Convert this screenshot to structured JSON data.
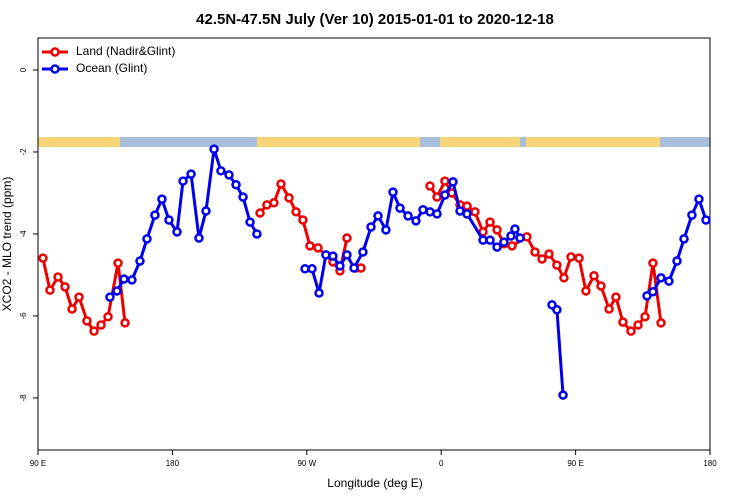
{
  "chart_data": {
    "type": "line",
    "title": "42.5N-47.5N July (Ver 10)   2015-01-01 to 2020-12-18",
    "x_label": "Longitude (deg E)",
    "y_label": "XCO2 - MLO trend (ppm)",
    "xlim": [
      90,
      540
    ],
    "ylim": [
      -9.27,
      0.78
    ],
    "xticks": [
      {
        "value": 90,
        "label": "90 E"
      },
      180,
      {
        "value": 270,
        "label": "90 W"
      },
      {
        "value": 360,
        "label": "0"
      },
      {
        "value": 450,
        "label": "90 E"
      },
      {
        "value": 540,
        "label": "180"
      }
    ],
    "yticks": [
      0,
      -2,
      -4,
      -6,
      -8
    ],
    "legend": "topleft",
    "series": [
      {
        "name": "Land (Nadir&Glint)",
        "color": "#ee0000",
        "x": [
          93.3,
          98.0,
          103.4,
          108.1,
          112.8,
          117.5,
          122.8,
          127.5,
          132.2,
          136.9,
          143.6,
          148.3,
          null,
          238.7,
          243.3,
          248.0,
          252.7,
          258.1,
          262.8,
          267.4,
          272.1,
          277.5,
          287.5,
          292.2,
          296.9,
          null,
          302.9,
          306.3,
          null,
          352.5,
          357.2,
          362.5,
          367.2,
          372.6,
          377.3,
          382.6,
          388.0,
          392.7,
          397.4,
          402.0,
          407.4,
          417.4,
          422.8,
          427.5,
          432.2,
          437.5,
          442.2,
          446.9,
          452.3,
          456.9,
          462.3,
          467.0,
          472.4,
          477.0,
          481.7,
          487.1,
          491.8,
          496.5,
          501.8,
          507.2
        ],
        "values": [
          -4.59,
          -5.37,
          -5.05,
          -5.29,
          -5.83,
          -5.54,
          -6.12,
          -6.37,
          -6.22,
          -6.02,
          -4.71,
          -6.17,
          null,
          -3.49,
          -3.29,
          -3.24,
          -2.78,
          -3.12,
          -3.46,
          -3.66,
          -4.29,
          -4.34,
          -4.68,
          -4.9,
          -4.1,
          null,
          -4.83,
          -4.83,
          null,
          -2.83,
          -3.1,
          -2.71,
          -3.0,
          -3.29,
          -3.32,
          -3.46,
          -3.95,
          -3.71,
          -3.9,
          -4.24,
          -4.29,
          -4.07,
          -4.44,
          -4.61,
          -4.49,
          -4.76,
          -5.07,
          -4.56,
          -4.59,
          -5.39,
          -5.02,
          -5.27,
          -5.83,
          -5.54,
          -6.15,
          -6.37,
          -6.22,
          -6.02,
          -4.71,
          -6.17
        ]
      },
      {
        "name": "Ocean (Glint)",
        "color": "#0000ee",
        "x": [
          138.2,
          142.9,
          147.6,
          152.9,
          158.3,
          163.0,
          168.3,
          173.0,
          177.7,
          183.1,
          187.1,
          192.5,
          197.8,
          202.5,
          207.9,
          212.5,
          217.9,
          222.6,
          227.3,
          232.0,
          236.6,
          null,
          268.8,
          273.5,
          278.2,
          282.8,
          287.5,
          292.2,
          296.9,
          301.6,
          307.6,
          313.0,
          317.7,
          323.0,
          327.7,
          332.4,
          337.8,
          343.1,
          347.8,
          352.5,
          357.2,
          362.5,
          367.9,
          372.6,
          377.3,
          388.0,
          392.7,
          397.4,
          402.0,
          406.7,
          409.4,
          412.8,
          null,
          434.2,
          437.5,
          441.6,
          null,
          497.8,
          501.8,
          507.2,
          512.5,
          517.9,
          522.6,
          527.9,
          532.6,
          537.3
        ],
        "values": [
          -5.54,
          -5.39,
          -5.1,
          -5.12,
          -4.66,
          -4.12,
          -3.54,
          -3.15,
          -3.66,
          -3.95,
          -2.71,
          -2.54,
          -4.1,
          -3.44,
          -1.93,
          -2.46,
          -2.56,
          -2.8,
          -3.1,
          -3.71,
          -4.0,
          null,
          -4.85,
          -4.85,
          -5.44,
          -4.51,
          -4.54,
          -4.78,
          -4.51,
          -4.83,
          -4.44,
          -3.83,
          -3.56,
          -3.9,
          -2.98,
          -3.37,
          -3.56,
          -3.68,
          -3.41,
          -3.46,
          -3.51,
          -3.05,
          -2.73,
          -3.44,
          -3.51,
          -4.15,
          -4.15,
          -4.32,
          -4.2,
          -4.05,
          -3.88,
          -4.1,
          null,
          -5.73,
          -5.85,
          -7.93,
          null,
          -5.51,
          -5.41,
          -5.07,
          -5.15,
          -4.66,
          -4.12,
          -3.54,
          -3.15,
          -3.66
        ]
      }
    ]
  }
}
